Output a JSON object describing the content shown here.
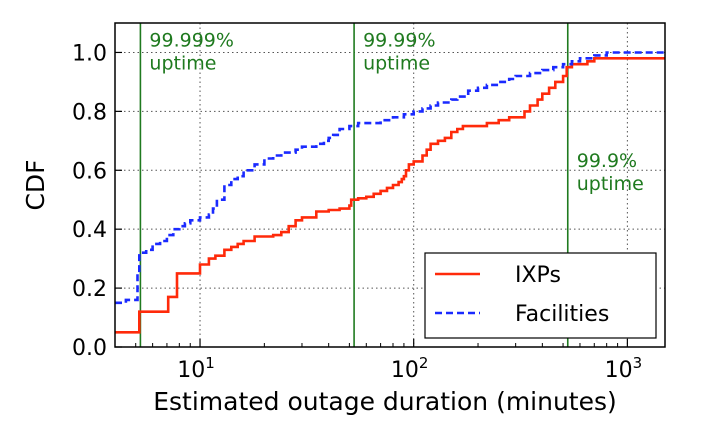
{
  "chart_data": {
    "type": "line",
    "xscale": "log",
    "xlim": [
      4,
      1500
    ],
    "ylim": [
      0,
      1.1
    ],
    "xlabel": "Estimated outage duration (minutes)",
    "ylabel": "CDF",
    "xticks": [
      {
        "value": 10,
        "base": "10",
        "exp": "1"
      },
      {
        "value": 100,
        "base": "10",
        "exp": "2"
      },
      {
        "value": 1000,
        "base": "10",
        "exp": "3"
      }
    ],
    "yticks": [
      {
        "value": 0,
        "label": "0.0"
      },
      {
        "value": 0.2,
        "label": "0.2"
      },
      {
        "value": 0.4,
        "label": "0.4"
      },
      {
        "value": 0.6,
        "label": "0.6"
      },
      {
        "value": 0.8,
        "label": "0.8"
      },
      {
        "value": 1.0,
        "label": "1.0"
      }
    ],
    "grid": true,
    "legend_position": "lower-right",
    "series": [
      {
        "name": "IXPs",
        "style": "solid",
        "color": "#ff2a0a",
        "x": [
          4,
          5.2,
          7.1,
          7.8,
          10,
          11,
          11.8,
          13,
          14,
          15,
          16,
          18,
          22,
          24,
          26,
          28,
          30,
          35,
          40,
          45,
          50,
          51,
          55,
          60,
          65,
          70,
          75,
          80,
          85,
          88,
          90,
          92,
          95,
          100,
          110,
          115,
          120,
          130,
          140,
          150,
          160,
          170,
          180,
          200,
          220,
          250,
          280,
          300,
          330,
          350,
          380,
          400,
          430,
          460,
          500,
          520,
          550,
          650,
          700,
          1000,
          1500
        ],
        "y": [
          0.05,
          0.12,
          0.17,
          0.25,
          0.28,
          0.3,
          0.31,
          0.33,
          0.34,
          0.35,
          0.36,
          0.375,
          0.38,
          0.39,
          0.41,
          0.43,
          0.44,
          0.46,
          0.465,
          0.47,
          0.48,
          0.5,
          0.505,
          0.51,
          0.52,
          0.53,
          0.54,
          0.55,
          0.56,
          0.57,
          0.58,
          0.6,
          0.62,
          0.63,
          0.65,
          0.67,
          0.69,
          0.7,
          0.71,
          0.73,
          0.74,
          0.75,
          0.75,
          0.75,
          0.76,
          0.77,
          0.78,
          0.78,
          0.8,
          0.82,
          0.84,
          0.86,
          0.88,
          0.9,
          0.92,
          0.95,
          0.96,
          0.97,
          0.98,
          0.98,
          0.98
        ]
      },
      {
        "name": "Facilities",
        "style": "dashed",
        "color": "#1a2aff",
        "x": [
          4,
          4.5,
          5.1,
          5.2,
          5.6,
          6,
          6.5,
          7,
          7.5,
          8,
          8.5,
          9,
          10,
          11,
          11.5,
          12,
          13,
          14,
          15,
          16,
          18,
          20,
          22,
          24,
          26,
          28,
          30,
          35,
          38,
          40,
          42,
          45,
          50,
          55,
          60,
          70,
          80,
          90,
          100,
          110,
          120,
          130,
          150,
          160,
          180,
          200,
          220,
          250,
          280,
          300,
          350,
          400,
          450,
          500,
          550,
          600,
          700,
          800
        ],
        "y": [
          0.15,
          0.16,
          0.25,
          0.32,
          0.33,
          0.35,
          0.36,
          0.38,
          0.4,
          0.41,
          0.42,
          0.43,
          0.44,
          0.45,
          0.47,
          0.5,
          0.55,
          0.57,
          0.58,
          0.6,
          0.62,
          0.64,
          0.65,
          0.66,
          0.66,
          0.67,
          0.68,
          0.69,
          0.7,
          0.71,
          0.72,
          0.74,
          0.75,
          0.76,
          0.76,
          0.77,
          0.78,
          0.79,
          0.8,
          0.81,
          0.82,
          0.83,
          0.84,
          0.85,
          0.87,
          0.88,
          0.89,
          0.9,
          0.91,
          0.92,
          0.93,
          0.94,
          0.95,
          0.96,
          0.97,
          0.98,
          0.99,
          1.0
        ]
      }
    ],
    "reference_lines": [
      {
        "x": 5.26,
        "line1": "99.999%",
        "line2": "uptime",
        "label_y": 1.0,
        "color": "#1f7a1f"
      },
      {
        "x": 52.6,
        "line1": "99.99%",
        "line2": "uptime",
        "label_y": 1.0,
        "color": "#1f7a1f"
      },
      {
        "x": 526,
        "line1": "99.9%",
        "line2": "uptime",
        "label_y": 0.59,
        "color": "#1f7a1f"
      }
    ]
  }
}
